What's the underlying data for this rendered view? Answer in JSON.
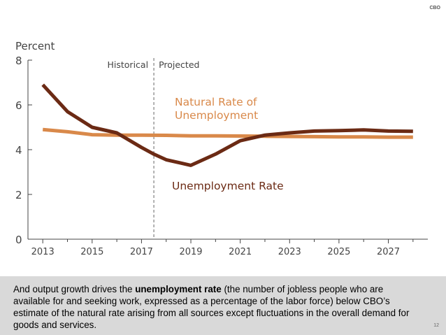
{
  "header": {
    "org_mark": "CBO"
  },
  "footer": {
    "caption_before": "And output growth drives the ",
    "caption_bold": "unemployment rate",
    "caption_after": " (the number of jobless people who are available for and seeking work, expressed as a percentage of the labor force) below CBO’s estimate of the natural rate arising from all sources except fluctuations in the overall demand for goods and services.",
    "page_number": "12"
  },
  "chart_data": {
    "type": "line",
    "ylabel": "Percent",
    "ylim": [
      0,
      8
    ],
    "y_ticks": [
      0,
      2,
      4,
      6,
      8
    ],
    "xlim": [
      2012.4,
      2028.6
    ],
    "x_ticks": [
      2013,
      2015,
      2017,
      2019,
      2021,
      2023,
      2025,
      2027
    ],
    "divider": {
      "x": 2017.5,
      "left_label": "Historical",
      "right_label": "Projected"
    },
    "series": [
      {
        "name": "Natural Rate of Unemployment",
        "label_lines": [
          "Natural Rate of",
          "Unemployment"
        ],
        "color": "#d9894a",
        "x": [
          2013,
          2014,
          2015,
          2016,
          2017,
          2018,
          2019,
          2020,
          2021,
          2022,
          2023,
          2024,
          2025,
          2026,
          2027,
          2028
        ],
        "values": [
          4.9,
          4.8,
          4.67,
          4.65,
          4.65,
          4.64,
          4.62,
          4.62,
          4.61,
          4.6,
          4.59,
          4.58,
          4.57,
          4.57,
          4.56,
          4.56
        ]
      },
      {
        "name": "Unemployment Rate",
        "label_lines": [
          "Unemployment Rate"
        ],
        "color": "#6b2a14",
        "x": [
          2013,
          2014,
          2015,
          2016,
          2017,
          2017.5,
          2018,
          2019,
          2020,
          2021,
          2022,
          2023,
          2024,
          2025,
          2026,
          2027,
          2028
        ],
        "values": [
          6.9,
          5.7,
          5.0,
          4.75,
          4.1,
          3.8,
          3.55,
          3.3,
          3.8,
          4.4,
          4.65,
          4.75,
          4.83,
          4.85,
          4.88,
          4.83,
          4.82
        ]
      }
    ]
  }
}
